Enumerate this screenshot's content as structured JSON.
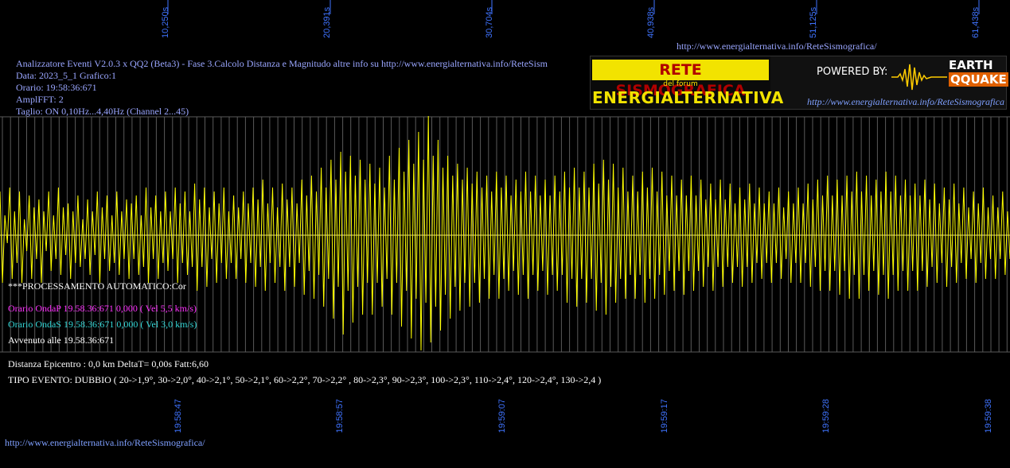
{
  "header": {
    "top_url": "http://www.energialternativa.info/ReteSismografica/",
    "info_lines": [
      "Analizzatore Eventi V2.0.3 x QQ2 (Beta3) - Fase 3.Calcolo Distanza e Magnitudo altre info su http://www.energialternativa.info/ReteSism",
      "Data: 2023_5_1 Grafico:1",
      "Orario: 19:58:36:671",
      "AmplFFT: 2",
      "Taglio: ON 0,10Hz...4,40Hz       (Channel 2...45)"
    ]
  },
  "logo": {
    "title_top": "RETE SISMOGRAFICA",
    "subtitle": "del forum",
    "title_bottom": "ENERGIALTERNATIVA",
    "powered_by": "POWERED BY:",
    "brand_top": "EARTH",
    "brand_bottom": "QQUAKE",
    "url": "http://www.energialternativa.info/ReteSismografica"
  },
  "processing": {
    "title": "***PROCESSAMENTO AUTOMATICO:Cor",
    "onda_p": "Orario OndaP 19.58.36:671  0,000 ( Vel 5,5 km/s)",
    "onda_s": "Orario OndaS 19.58.36:671  0,000 ( Vel 3,0 km/s)",
    "avvenuto": "Avvenuto alle 19.58.36:671"
  },
  "results": {
    "distanza": "Distanza Epicentro : 0,0 km DeltaT= 0,00s  Fatt:6,60",
    "tipo_evento": "TIPO EVENTO: DUBBIO ( 20->1,9°, 30->2,0°, 40->2,1°, 50->2,1°, 60->2,2°, 70->2,2° , 80->2,3°, 90->2,3°, 100->2,3°, 110->2,4°, 120->2,4°, 130->2,4 )"
  },
  "footer": {
    "url": "http://www.energialternativa.info/ReteSismografica/"
  },
  "colors": {
    "background": "#000000",
    "trace": "#ffff00",
    "grid": "#5a5a5a",
    "axis_labels": "#3f73ff",
    "info_text": "#9aa6ff",
    "onda_p": "#ff33ff",
    "onda_s": "#33d6d6",
    "white_text": "#ffffff"
  },
  "chart_data": {
    "type": "line",
    "top_axis_ticks": [
      "10,250s",
      "20,391s",
      "30,704s",
      "40,938s",
      "51,125s",
      "61,438s"
    ],
    "bottom_axis_ticks": [
      "19:58:47",
      "19:58:57",
      "19:59:07",
      "19:59:17",
      "19:59:28",
      "19:59:38"
    ],
    "series": [
      {
        "values": [
          0.55,
          -0.6,
          0.25,
          -0.1,
          0.6,
          -0.55,
          0.3,
          -0.35,
          0.55,
          -0.6,
          0.2,
          -0.2,
          0.5,
          -0.55,
          0.35,
          -0.3,
          0.45,
          -0.6,
          0.3,
          -0.2,
          0.55,
          -0.45,
          0.25,
          -0.3,
          0.6,
          -0.5,
          0.35,
          -0.25,
          0.4,
          -0.55,
          0.3,
          -0.35,
          0.5,
          -0.4,
          0.2,
          -0.3,
          0.45,
          -0.5,
          0.3,
          -0.25,
          0.55,
          -0.6,
          0.35,
          -0.3,
          0.5,
          -0.45,
          0.25,
          -0.35,
          0.55,
          -0.5,
          0.3,
          -0.3,
          0.45,
          -0.55,
          0.4,
          -0.3,
          0.5,
          -0.5,
          0.25,
          -0.4,
          0.6,
          -0.6,
          0.35,
          -0.3,
          0.5,
          -0.55,
          0.3,
          -0.35,
          0.55,
          -0.45,
          0.3,
          -0.3,
          0.6,
          -0.6,
          0.4,
          -0.35,
          0.55,
          -0.5,
          0.3,
          -0.4,
          0.65,
          -0.7,
          0.45,
          -0.4,
          0.6,
          -0.65,
          0.35,
          -0.3,
          0.55,
          -0.6,
          0.4,
          -0.35,
          0.6,
          -0.55,
          0.3,
          -0.35,
          0.5,
          -0.55,
          0.35,
          -0.3,
          0.55,
          -0.6,
          0.4,
          -0.35,
          0.6,
          -0.65,
          0.45,
          -0.4,
          0.7,
          -0.7,
          0.4,
          -0.35,
          0.6,
          -0.6,
          0.35,
          -0.4,
          0.65,
          -0.7,
          0.45,
          -0.4,
          0.6,
          -0.65,
          0.4,
          -0.35,
          0.7,
          -0.75,
          0.5,
          -0.45,
          0.75,
          -0.8,
          0.55,
          -0.5,
          0.85,
          -0.9,
          0.6,
          -0.55,
          0.95,
          -1.05,
          0.7,
          -0.65,
          1.05,
          -1.25,
          0.8,
          -0.7,
          1.0,
          -1.1,
          0.75,
          -0.65,
          0.95,
          -1.0,
          0.7,
          -0.6,
          0.9,
          -1.0,
          0.65,
          -0.6,
          0.85,
          -0.9,
          0.6,
          -0.55,
          1.0,
          -1.0,
          0.7,
          -0.6,
          1.1,
          -1.15,
          0.8,
          -0.7,
          1.2,
          -1.3,
          0.9,
          -0.8,
          1.3,
          -1.45,
          0.95,
          -0.85,
          1.5,
          -1.35,
          1.0,
          -0.9,
          1.2,
          -1.2,
          0.85,
          -0.75,
          1.0,
          -1.05,
          0.75,
          -0.65,
          0.9,
          -0.95,
          0.7,
          -0.6,
          0.85,
          -0.9,
          0.65,
          -0.6,
          0.8,
          -0.85,
          0.6,
          -0.55,
          0.75,
          -0.8,
          0.55,
          -0.5,
          0.8,
          -0.8,
          0.6,
          -0.55,
          0.75,
          -0.7,
          0.5,
          -0.45,
          0.7,
          -0.75,
          0.55,
          -0.5,
          0.8,
          -0.8,
          0.55,
          -0.5,
          0.75,
          -0.7,
          0.5,
          -0.45,
          0.7,
          -0.75,
          0.5,
          -0.5,
          0.75,
          -0.7,
          0.55,
          -0.5,
          0.8,
          -0.85,
          0.6,
          -0.55,
          0.85,
          -0.9,
          0.6,
          -0.55,
          0.8,
          -0.85,
          0.6,
          -0.55,
          0.9,
          -0.95,
          0.65,
          -0.6,
          0.95,
          -1.0,
          0.7,
          -0.65,
          0.9,
          -0.85,
          0.6,
          -0.55,
          0.85,
          -0.8,
          0.55,
          -0.5,
          0.75,
          -0.8,
          0.55,
          -0.5,
          0.8,
          -0.85,
          0.6,
          -0.55,
          0.85,
          -0.8,
          0.55,
          -0.5,
          0.8,
          -0.75,
          0.5,
          -0.45,
          0.75,
          -0.7,
          0.5,
          -0.45,
          0.7,
          -0.75,
          0.5,
          -0.45,
          0.75,
          -0.7,
          0.5,
          -0.45,
          0.7,
          -0.65,
          0.45,
          -0.4,
          0.65,
          -0.7,
          0.45,
          -0.4,
          0.7,
          -0.65,
          0.45,
          -0.4,
          0.65,
          -0.6,
          0.4,
          -0.4,
          0.6,
          -0.65,
          0.45,
          -0.4,
          0.65,
          -0.6,
          0.4,
          -0.35,
          0.6,
          -0.55,
          0.4,
          -0.35,
          0.55,
          -0.6,
          0.4,
          -0.35,
          0.6,
          -0.55,
          0.35,
          -0.3,
          0.55,
          -0.6,
          0.4,
          -0.35,
          0.6,
          -0.6,
          0.4,
          -0.35,
          0.65,
          -0.65,
          0.45,
          -0.4,
          0.7,
          -0.7,
          0.5,
          -0.45,
          0.75,
          -0.7,
          0.5,
          -0.45,
          0.7,
          -0.75,
          0.5,
          -0.45,
          0.75,
          -0.8,
          0.55,
          -0.5,
          0.8,
          -0.8,
          0.55,
          -0.5,
          0.75,
          -0.7,
          0.5,
          -0.45,
          0.7,
          -0.75,
          0.55,
          -0.5,
          0.8,
          -0.8,
          0.55,
          -0.5,
          0.75,
          -0.7,
          0.5,
          -0.45,
          0.7,
          -0.7,
          0.5,
          -0.45,
          0.65,
          -0.7,
          0.5,
          -0.45,
          0.7,
          -0.65,
          0.45,
          -0.4,
          0.65,
          -0.6,
          0.4,
          -0.35,
          0.6,
          -0.65,
          0.45,
          -0.4,
          0.65,
          -0.6,
          0.4,
          -0.35,
          0.6,
          -0.55,
          0.35,
          -0.3,
          0.55,
          -0.6,
          0.4,
          -0.35,
          0.6,
          -0.55,
          0.35,
          -0.3,
          0.5,
          -0.55,
          0.35,
          -0.3,
          0.55,
          -0.5,
          0.3,
          -0.3
        ]
      }
    ]
  }
}
